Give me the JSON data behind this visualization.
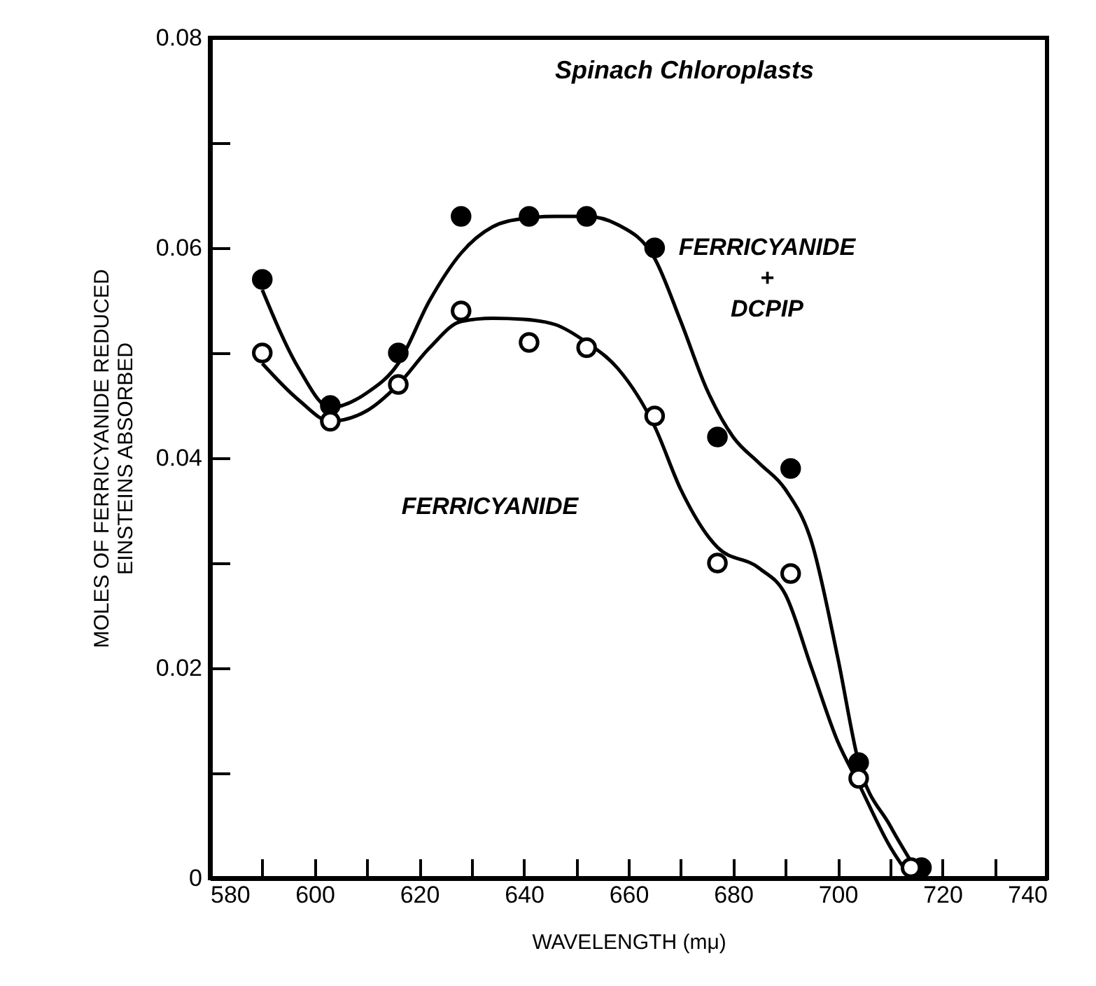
{
  "chart_data": {
    "type": "scatter",
    "title": "Spinach Chloroplasts",
    "xlabel": "WAVELENGTH  (mμ)",
    "ylabel": "MOLES OF FERRICYANIDE REDUCED\nEINSTEINS ABSORBED",
    "xlim": [
      580,
      740
    ],
    "xticks": [
      580,
      {
        "value": 590,
        "label": null
      },
      600,
      {
        "value": 610,
        "label": null
      },
      620,
      {
        "value": 630,
        "label": null
      },
      640,
      {
        "value": 650,
        "label": null
      },
      660,
      {
        "value": 670,
        "label": null
      },
      680,
      {
        "value": 690,
        "label": null
      },
      700,
      {
        "value": 710,
        "label": null
      },
      720,
      {
        "value": 730,
        "label": null
      },
      740
    ],
    "ylim": [
      0,
      0.08
    ],
    "yticks": [
      0,
      {
        "value": 0.01,
        "label": null
      },
      0.02,
      {
        "value": 0.03,
        "label": null
      },
      0.04,
      {
        "value": 0.05,
        "label": null
      },
      0.06,
      {
        "value": 0.07,
        "label": null
      },
      0.08
    ],
    "grid": false,
    "series": [
      {
        "type": "line",
        "color": "#000000",
        "marker": "none",
        "line_style": "solid",
        "x": [
          590,
          597,
          603,
          610,
          616,
          622,
          628,
          634,
          640,
          646,
          652,
          658,
          665,
          670,
          675,
          680,
          685,
          690,
          695,
          700,
          704,
          710,
          716
        ],
        "values": [
          0.056,
          0.0485,
          0.0448,
          0.0462,
          0.049,
          0.055,
          0.0595,
          0.062,
          0.0628,
          0.063,
          0.063,
          0.0622,
          0.059,
          0.053,
          0.0465,
          0.042,
          0.0395,
          0.037,
          0.032,
          0.021,
          0.011,
          0.005,
          0.0
        ]
      },
      {
        "type": "line",
        "color": "#000000",
        "marker": "none",
        "line_style": "solid",
        "x": [
          590,
          597,
          603,
          610,
          616,
          622,
          628,
          634,
          640,
          646,
          652,
          658,
          665,
          670,
          677,
          685,
          690,
          695,
          700,
          704,
          710,
          714
        ],
        "values": [
          0.049,
          0.0455,
          0.0435,
          0.0445,
          0.047,
          0.0505,
          0.053,
          0.0533,
          0.0532,
          0.0527,
          0.051,
          0.0485,
          0.043,
          0.037,
          0.0315,
          0.0295,
          0.027,
          0.02,
          0.013,
          0.009,
          0.003,
          0.0
        ]
      },
      {
        "type": "scatter",
        "color": "#000000",
        "marker": "circle",
        "x": [
          590,
          603,
          616,
          628,
          641,
          652,
          665,
          677,
          691,
          704,
          716
        ],
        "values": [
          0.057,
          0.045,
          0.05,
          0.063,
          0.063,
          0.063,
          0.06,
          0.042,
          0.039,
          0.011,
          0.001
        ]
      },
      {
        "type": "scatter",
        "color": "#ffffff",
        "marker": "circle",
        "x": [
          590,
          603,
          616,
          628,
          641,
          652,
          665,
          677,
          691,
          704,
          714
        ],
        "values": [
          0.05,
          0.0435,
          0.047,
          0.054,
          0.051,
          0.0505,
          0.044,
          0.03,
          0.029,
          0.0095,
          0.001
        ]
      }
    ],
    "annotations": [
      "FERRICYANIDE + DCPIP",
      "FERRICYANIDE"
    ]
  }
}
